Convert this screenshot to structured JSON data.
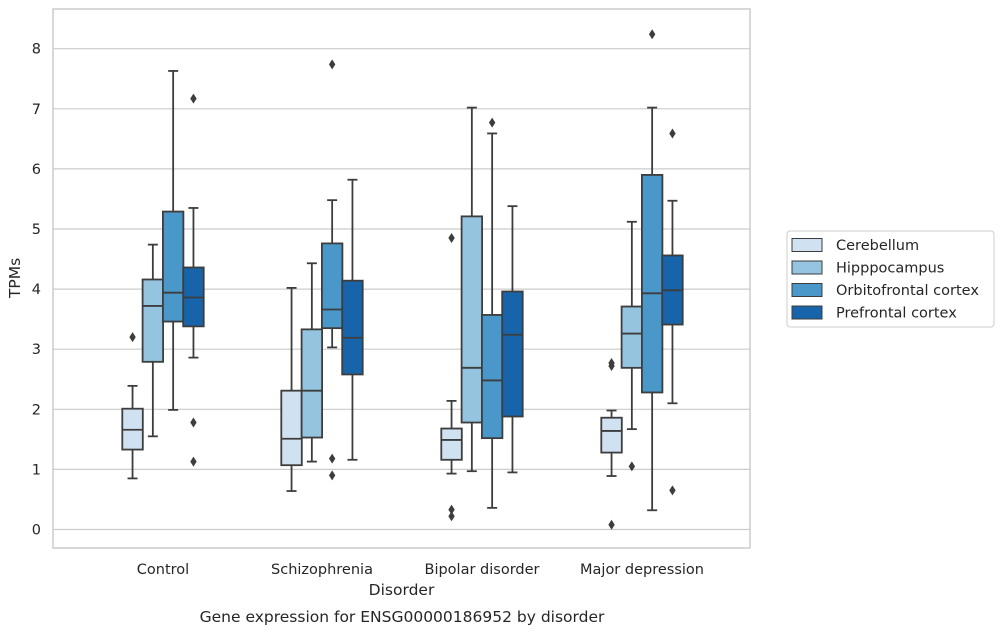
{
  "chart_data": {
    "type": "box",
    "xlabel": "Disorder",
    "ylabel": "TPMs",
    "caption": "Gene expression for ENSG00000186952 by disorder",
    "ylim": [
      -0.3,
      8.65
    ],
    "yticks": [
      0,
      1,
      2,
      3,
      4,
      5,
      6,
      7,
      8
    ],
    "grid": "horizontal",
    "legend": "right",
    "categories": [
      "Control",
      "Schizophrenia",
      "Bipolar disorder",
      "Major depression"
    ],
    "series": [
      {
        "name": "Cerebellum",
        "color": "#d0e1f2",
        "boxes": [
          {
            "whislo": 0.85,
            "q1": 1.33,
            "med": 1.66,
            "q3": 2.01,
            "whishi": 2.39,
            "fliers": [
              3.2
            ]
          },
          {
            "whislo": 0.64,
            "q1": 1.07,
            "med": 1.51,
            "q3": 2.31,
            "whishi": 4.02,
            "fliers": []
          },
          {
            "whislo": 0.93,
            "q1": 1.16,
            "med": 1.49,
            "q3": 1.68,
            "whishi": 2.14,
            "fliers": [
              4.85,
              0.33,
              0.22
            ]
          },
          {
            "whislo": 0.89,
            "q1": 1.28,
            "med": 1.64,
            "q3": 1.86,
            "whishi": 1.98,
            "fliers": [
              2.77,
              2.72,
              0.08
            ]
          }
        ]
      },
      {
        "name": "Hipppocampus",
        "color": "#94c4df",
        "boxes": [
          {
            "whislo": 1.55,
            "q1": 2.79,
            "med": 3.72,
            "q3": 4.16,
            "whishi": 4.74,
            "fliers": []
          },
          {
            "whislo": 1.13,
            "q1": 1.53,
            "med": 2.31,
            "q3": 3.33,
            "whishi": 4.43,
            "fliers": []
          },
          {
            "whislo": 0.97,
            "q1": 1.78,
            "med": 2.69,
            "q3": 5.21,
            "whishi": 7.02,
            "fliers": []
          },
          {
            "whislo": 1.67,
            "q1": 2.69,
            "med": 3.26,
            "q3": 3.71,
            "whishi": 5.12,
            "fliers": [
              1.05
            ]
          }
        ]
      },
      {
        "name": "Orbitofrontal cortex",
        "color": "#4a98c9",
        "boxes": [
          {
            "whislo": 1.99,
            "q1": 3.46,
            "med": 3.94,
            "q3": 5.29,
            "whishi": 7.63,
            "fliers": []
          },
          {
            "whislo": 3.03,
            "q1": 3.35,
            "med": 3.66,
            "q3": 4.76,
            "whishi": 5.48,
            "fliers": [
              7.74,
              1.18,
              0.9
            ]
          },
          {
            "whislo": 0.36,
            "q1": 1.52,
            "med": 2.48,
            "q3": 3.57,
            "whishi": 6.59,
            "fliers": [
              6.77
            ]
          },
          {
            "whislo": 0.32,
            "q1": 2.28,
            "med": 3.93,
            "q3": 5.9,
            "whishi": 7.02,
            "fliers": [
              8.24
            ]
          }
        ]
      },
      {
        "name": "Prefrontal cortex",
        "color": "#1764ab",
        "boxes": [
          {
            "whislo": 2.86,
            "q1": 3.38,
            "med": 3.86,
            "q3": 4.36,
            "whishi": 5.35,
            "fliers": [
              7.17,
              1.78,
              1.13
            ]
          },
          {
            "whislo": 1.16,
            "q1": 2.58,
            "med": 3.19,
            "q3": 4.14,
            "whishi": 5.82,
            "fliers": []
          },
          {
            "whislo": 0.95,
            "q1": 1.88,
            "med": 3.24,
            "q3": 3.96,
            "whishi": 5.38,
            "fliers": []
          },
          {
            "whislo": 2.1,
            "q1": 3.41,
            "med": 3.98,
            "q3": 4.56,
            "whishi": 5.47,
            "fliers": [
              6.59,
              0.65
            ]
          }
        ]
      }
    ]
  }
}
